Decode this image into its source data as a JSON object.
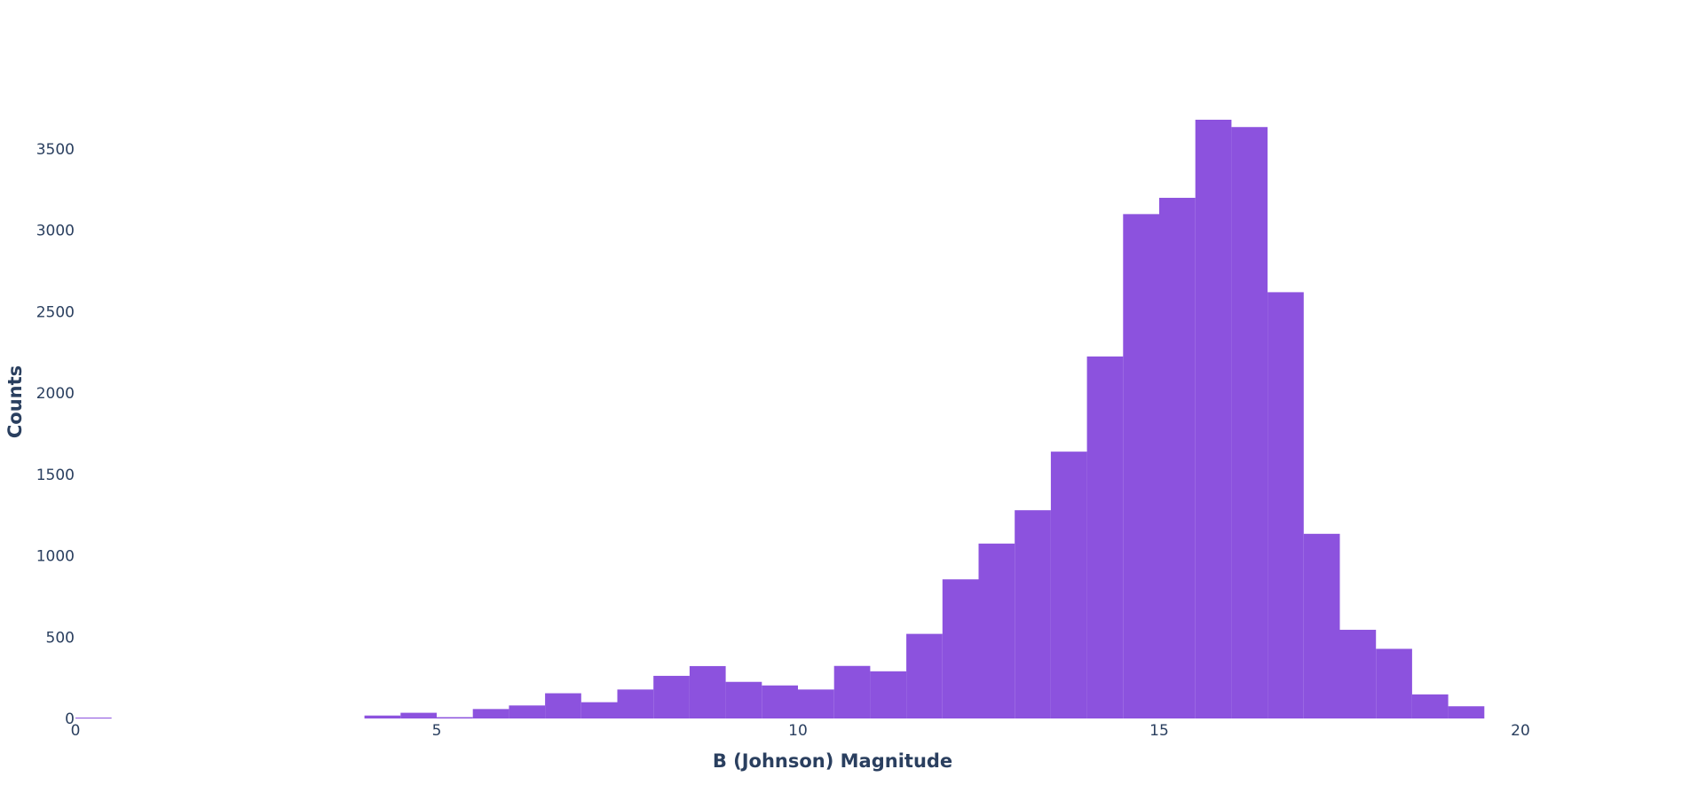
{
  "chart_data": {
    "type": "bar",
    "bin_width": 0.5,
    "bins": [
      {
        "x0": 0.0,
        "x1": 0.5,
        "count": 1
      },
      {
        "x0": 4.0,
        "x1": 4.5,
        "count": 18
      },
      {
        "x0": 4.5,
        "x1": 5.0,
        "count": 35
      },
      {
        "x0": 5.0,
        "x1": 5.5,
        "count": 8
      },
      {
        "x0": 5.5,
        "x1": 6.0,
        "count": 58
      },
      {
        "x0": 6.0,
        "x1": 6.5,
        "count": 80
      },
      {
        "x0": 6.5,
        "x1": 7.0,
        "count": 155
      },
      {
        "x0": 7.0,
        "x1": 7.5,
        "count": 100
      },
      {
        "x0": 7.5,
        "x1": 8.0,
        "count": 178
      },
      {
        "x0": 8.0,
        "x1": 8.5,
        "count": 262
      },
      {
        "x0": 8.5,
        "x1": 9.0,
        "count": 322
      },
      {
        "x0": 9.0,
        "x1": 9.5,
        "count": 225
      },
      {
        "x0": 9.5,
        "x1": 10.0,
        "count": 203
      },
      {
        "x0": 10.0,
        "x1": 10.5,
        "count": 178
      },
      {
        "x0": 10.5,
        "x1": 11.0,
        "count": 323
      },
      {
        "x0": 11.0,
        "x1": 11.5,
        "count": 290
      },
      {
        "x0": 11.5,
        "x1": 12.0,
        "count": 520
      },
      {
        "x0": 12.0,
        "x1": 12.5,
        "count": 855
      },
      {
        "x0": 12.5,
        "x1": 13.0,
        "count": 1075
      },
      {
        "x0": 13.0,
        "x1": 13.5,
        "count": 1280
      },
      {
        "x0": 13.5,
        "x1": 14.0,
        "count": 1640
      },
      {
        "x0": 14.0,
        "x1": 14.5,
        "count": 2225
      },
      {
        "x0": 14.5,
        "x1": 15.0,
        "count": 3100
      },
      {
        "x0": 15.0,
        "x1": 15.5,
        "count": 3200
      },
      {
        "x0": 15.5,
        "x1": 16.0,
        "count": 3680
      },
      {
        "x0": 16.0,
        "x1": 16.5,
        "count": 3635
      },
      {
        "x0": 16.5,
        "x1": 17.0,
        "count": 2620
      },
      {
        "x0": 17.0,
        "x1": 17.5,
        "count": 1135
      },
      {
        "x0": 17.5,
        "x1": 18.0,
        "count": 545
      },
      {
        "x0": 18.0,
        "x1": 18.5,
        "count": 428
      },
      {
        "x0": 18.5,
        "x1": 19.0,
        "count": 148
      },
      {
        "x0": 19.0,
        "x1": 19.5,
        "count": 75
      }
    ],
    "xlabel": "B (Johnson) Magnitude",
    "ylabel": "Counts",
    "xlim": [
      0,
      22
    ],
    "ylim": [
      0,
      3870
    ],
    "x_ticks": [
      0,
      5,
      10,
      15,
      20
    ],
    "y_ticks": [
      0,
      500,
      1000,
      1500,
      2000,
      2500,
      3000,
      3500
    ],
    "grid": false,
    "bar_color": "#8c52de"
  }
}
